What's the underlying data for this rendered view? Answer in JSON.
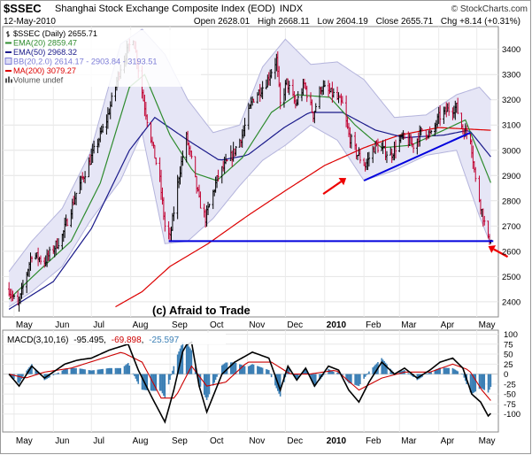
{
  "header": {
    "symbol": "$SSEC",
    "name": "Shanghai Stock Exchange Composite Index (EOD)",
    "exchange": "INDX",
    "date": "12-May-2010",
    "brand": "© StockCharts.com",
    "open_label": "Open",
    "open": "2628.01",
    "high_label": "High",
    "high": "2668.11",
    "low_label": "Low",
    "low": "2604.19",
    "close_label": "Close",
    "close": "2655.71",
    "chg_label": "Chg",
    "chg": "+8.14 (+0.31%)"
  },
  "legend": [
    {
      "text": "$SSEC (Daily) 2655.71",
      "color": "#000000",
      "marker": "bar"
    },
    {
      "text": "EMA(20) 2859.47",
      "color": "#2e8b2e",
      "marker": "line"
    },
    {
      "text": "EMA(50) 2968.32",
      "color": "#1a1a8a",
      "marker": "line"
    },
    {
      "text": "BB(20,2.0) 2614.17 - 2903.84 - 3193.51",
      "color": "#7b7bd6",
      "marker": "box"
    },
    {
      "text": "MA(200) 3079.27",
      "color": "#dd0000",
      "marker": "line"
    },
    {
      "text": "Volume undef",
      "color": "#555555",
      "marker": "vol"
    }
  ],
  "watermark": "(c) Afraid to Trade",
  "macd_legend": {
    "label": "MACD(3,10,16)",
    "macd": "-95.495",
    "signal": "-69.898",
    "hist": "-25.597",
    "colors": {
      "macd": "#000000",
      "signal": "#cc0000",
      "hist": "#3b7fb5"
    }
  },
  "colors": {
    "price_up": "#000000",
    "price_down": "#c00030",
    "ema20": "#2e8b2e",
    "ema50": "#1a1a8a",
    "ma200": "#dd0000",
    "bb_fill": "#e6e6f6",
    "bb_edge": "#b4b4dc",
    "trendline": "#0000dd",
    "arrow": "#ee0000"
  },
  "annotations": {
    "arrows": [
      {
        "x": "2010-01-18",
        "y": 2890,
        "dx": -26,
        "dy": 18
      },
      {
        "x": "2010-05-10",
        "y": 2620,
        "dx": 22,
        "dy": 12
      }
    ],
    "support_line": {
      "x1": "2009-08-31",
      "x2": "2010-05-14",
      "y": 2640
    },
    "trend_line": {
      "x1": "2010-02-01",
      "y1": 2880,
      "x2": "2010-04-26",
      "y2": 3070
    }
  },
  "chart_data": [
    {
      "type": "ohlc",
      "xlabels": [
        "May",
        "Jun",
        "Jul",
        "Aug",
        "Sep",
        "Oct",
        "Nov",
        "Dec",
        "2010",
        "Feb",
        "Mar",
        "Apr",
        "May"
      ],
      "xlabel_dates": [
        "2009-05-01",
        "2009-06-01",
        "2009-07-01",
        "2009-08-01",
        "2009-09-01",
        "2009-10-01",
        "2009-11-01",
        "2009-12-01",
        "2010-01-01",
        "2010-02-01",
        "2010-03-01",
        "2010-04-01",
        "2010-05-01"
      ],
      "ylim": [
        2340,
        3490
      ],
      "yticks": [
        2400,
        2500,
        2600,
        2700,
        2800,
        2900,
        3000,
        3100,
        3200,
        3300,
        3400
      ],
      "anchors": [
        [
          "2009-04-27",
          2450
        ],
        [
          "2009-05-04",
          2380
        ],
        [
          "2009-05-15",
          2590
        ],
        [
          "2009-05-25",
          2560
        ],
        [
          "2009-06-08",
          2660
        ],
        [
          "2009-06-19",
          2830
        ],
        [
          "2009-06-30",
          2960
        ],
        [
          "2009-07-13",
          3120
        ],
        [
          "2009-07-24",
          3330
        ],
        [
          "2009-08-03",
          3450
        ],
        [
          "2009-08-11",
          3200
        ],
        [
          "2009-08-19",
          3000
        ],
        [
          "2009-08-24",
          2880
        ],
        [
          "2009-08-28",
          2700
        ],
        [
          "2009-09-01",
          2650
        ],
        [
          "2009-09-08",
          2900
        ],
        [
          "2009-09-14",
          3050
        ],
        [
          "2009-09-18",
          2960
        ],
        [
          "2009-09-24",
          2800
        ],
        [
          "2009-09-29",
          2730
        ],
        [
          "2009-10-09",
          2900
        ],
        [
          "2009-10-20",
          2980
        ],
        [
          "2009-10-28",
          3060
        ],
        [
          "2009-11-05",
          3200
        ],
        [
          "2009-11-16",
          3270
        ],
        [
          "2009-11-24",
          3360
        ],
        [
          "2009-11-27",
          3180
        ],
        [
          "2009-12-02",
          3270
        ],
        [
          "2009-12-09",
          3180
        ],
        [
          "2009-12-16",
          3260
        ],
        [
          "2009-12-23",
          3140
        ],
        [
          "2009-12-29",
          3250
        ],
        [
          "2010-01-08",
          3220
        ],
        [
          "2010-01-15",
          3180
        ],
        [
          "2010-01-20",
          3060
        ],
        [
          "2010-01-26",
          2990
        ],
        [
          "2010-02-02",
          2940
        ],
        [
          "2010-02-10",
          3020
        ],
        [
          "2010-02-22",
          2980
        ],
        [
          "2010-03-03",
          3050
        ],
        [
          "2010-03-12",
          3020
        ],
        [
          "2010-03-19",
          3080
        ],
        [
          "2010-03-26",
          3060
        ],
        [
          "2010-04-01",
          3130
        ],
        [
          "2010-04-08",
          3160
        ],
        [
          "2010-04-15",
          3170
        ],
        [
          "2010-04-20",
          3080
        ],
        [
          "2010-04-26",
          3050
        ],
        [
          "2010-04-30",
          2880
        ],
        [
          "2010-05-05",
          2760
        ],
        [
          "2010-05-10",
          2640
        ],
        [
          "2010-05-12",
          2656
        ]
      ],
      "bb_anchors": [
        [
          "2009-04-27",
          2380,
          2520
        ],
        [
          "2009-05-15",
          2440,
          2640
        ],
        [
          "2009-06-08",
          2540,
          2770
        ],
        [
          "2009-06-30",
          2720,
          2990
        ],
        [
          "2009-07-24",
          2880,
          3420
        ],
        [
          "2009-08-10",
          3070,
          3480
        ],
        [
          "2009-08-28",
          2630,
          3380
        ],
        [
          "2009-09-15",
          2640,
          3200
        ],
        [
          "2009-10-05",
          2730,
          3070
        ],
        [
          "2009-10-26",
          2860,
          3100
        ],
        [
          "2009-11-13",
          2960,
          3330
        ],
        [
          "2009-12-01",
          3020,
          3440
        ],
        [
          "2009-12-21",
          3100,
          3340
        ],
        [
          "2010-01-11",
          3040,
          3350
        ],
        [
          "2010-02-01",
          2880,
          3280
        ],
        [
          "2010-02-25",
          2920,
          3130
        ],
        [
          "2010-03-22",
          2980,
          3140
        ],
        [
          "2010-04-15",
          3000,
          3220
        ],
        [
          "2010-05-03",
          2740,
          3250
        ],
        [
          "2010-05-13",
          2614,
          3194
        ]
      ],
      "ema20_anchors": [
        [
          "2009-04-27",
          2410
        ],
        [
          "2009-05-20",
          2520
        ],
        [
          "2009-06-15",
          2640
        ],
        [
          "2009-07-08",
          2870
        ],
        [
          "2009-07-31",
          3250
        ],
        [
          "2009-08-12",
          3300
        ],
        [
          "2009-09-01",
          3060
        ],
        [
          "2009-09-20",
          2910
        ],
        [
          "2009-10-08",
          2880
        ],
        [
          "2009-10-28",
          2970
        ],
        [
          "2009-11-20",
          3150
        ],
        [
          "2009-12-10",
          3220
        ],
        [
          "2010-01-05",
          3210
        ],
        [
          "2010-01-25",
          3100
        ],
        [
          "2010-02-15",
          3010
        ],
        [
          "2010-03-10",
          3020
        ],
        [
          "2010-04-05",
          3080
        ],
        [
          "2010-04-22",
          3120
        ],
        [
          "2010-05-13",
          2859
        ]
      ],
      "ema50_anchors": [
        [
          "2009-04-27",
          2370
        ],
        [
          "2009-06-01",
          2480
        ],
        [
          "2009-07-01",
          2690
        ],
        [
          "2009-07-31",
          3000
        ],
        [
          "2009-08-20",
          3130
        ],
        [
          "2009-09-15",
          3040
        ],
        [
          "2009-10-10",
          2960
        ],
        [
          "2009-11-01",
          2980
        ],
        [
          "2009-11-30",
          3090
        ],
        [
          "2009-12-20",
          3150
        ],
        [
          "2010-01-15",
          3150
        ],
        [
          "2010-02-10",
          3080
        ],
        [
          "2010-03-05",
          3050
        ],
        [
          "2010-04-05",
          3060
        ],
        [
          "2010-04-25",
          3080
        ],
        [
          "2010-05-13",
          2968
        ]
      ],
      "ma200_anchors": [
        [
          "2009-07-20",
          2380
        ],
        [
          "2009-08-10",
          2440
        ],
        [
          "2009-09-01",
          2540
        ],
        [
          "2009-10-01",
          2630
        ],
        [
          "2009-11-01",
          2740
        ],
        [
          "2009-12-01",
          2840
        ],
        [
          "2010-01-01",
          2940
        ],
        [
          "2010-02-01",
          3010
        ],
        [
          "2010-03-01",
          3060
        ],
        [
          "2010-04-01",
          3090
        ],
        [
          "2010-05-13",
          3079
        ]
      ]
    },
    {
      "type": "line",
      "name": "MACD(3,10,16)",
      "ylim": [
        -145,
        110
      ],
      "yticks": [
        100,
        75,
        50,
        25,
        0,
        -25,
        -50,
        -75,
        -100
      ],
      "macd_anchors": [
        [
          "2009-04-27",
          0
        ],
        [
          "2009-05-05",
          -30
        ],
        [
          "2009-05-15",
          20
        ],
        [
          "2009-05-25",
          -10
        ],
        [
          "2009-06-10",
          25
        ],
        [
          "2009-06-20",
          35
        ],
        [
          "2009-07-01",
          40
        ],
        [
          "2009-07-15",
          60
        ],
        [
          "2009-07-30",
          75
        ],
        [
          "2009-08-07",
          10
        ],
        [
          "2009-08-18",
          -60
        ],
        [
          "2009-08-28",
          -120
        ],
        [
          "2009-09-04",
          -40
        ],
        [
          "2009-09-12",
          70
        ],
        [
          "2009-09-18",
          80
        ],
        [
          "2009-09-24",
          -30
        ],
        [
          "2009-09-30",
          -95
        ],
        [
          "2009-10-12",
          0
        ],
        [
          "2009-10-22",
          30
        ],
        [
          "2009-11-05",
          55
        ],
        [
          "2009-11-18",
          40
        ],
        [
          "2009-11-27",
          -40
        ],
        [
          "2009-12-03",
          20
        ],
        [
          "2009-12-10",
          -15
        ],
        [
          "2009-12-17",
          15
        ],
        [
          "2009-12-24",
          -30
        ],
        [
          "2010-01-04",
          20
        ],
        [
          "2010-01-12",
          10
        ],
        [
          "2010-01-20",
          -40
        ],
        [
          "2010-01-28",
          -70
        ],
        [
          "2010-02-05",
          -20
        ],
        [
          "2010-02-15",
          30
        ],
        [
          "2010-02-25",
          0
        ],
        [
          "2010-03-05",
          15
        ],
        [
          "2010-03-15",
          -10
        ],
        [
          "2010-03-25",
          10
        ],
        [
          "2010-04-02",
          30
        ],
        [
          "2010-04-12",
          40
        ],
        [
          "2010-04-20",
          15
        ],
        [
          "2010-04-27",
          -50
        ],
        [
          "2010-05-04",
          -70
        ],
        [
          "2010-05-10",
          -105
        ],
        [
          "2010-05-13",
          -95
        ]
      ],
      "signal_anchors": [
        [
          "2009-04-27",
          0
        ],
        [
          "2009-05-10",
          -10
        ],
        [
          "2009-05-25",
          5
        ],
        [
          "2009-06-15",
          15
        ],
        [
          "2009-07-05",
          35
        ],
        [
          "2009-07-25",
          55
        ],
        [
          "2009-08-10",
          30
        ],
        [
          "2009-08-25",
          -60
        ],
        [
          "2009-09-05",
          -60
        ],
        [
          "2009-09-18",
          20
        ],
        [
          "2009-09-30",
          -30
        ],
        [
          "2009-10-15",
          -20
        ],
        [
          "2009-11-01",
          30
        ],
        [
          "2009-11-20",
          30
        ],
        [
          "2009-12-05",
          0
        ],
        [
          "2009-12-20",
          0
        ],
        [
          "2010-01-10",
          10
        ],
        [
          "2010-01-28",
          -40
        ],
        [
          "2010-02-15",
          -10
        ],
        [
          "2010-03-05",
          5
        ],
        [
          "2010-03-25",
          5
        ],
        [
          "2010-04-12",
          25
        ],
        [
          "2010-04-25",
          10
        ],
        [
          "2010-05-05",
          -40
        ],
        [
          "2010-05-13",
          -70
        ]
      ]
    }
  ]
}
